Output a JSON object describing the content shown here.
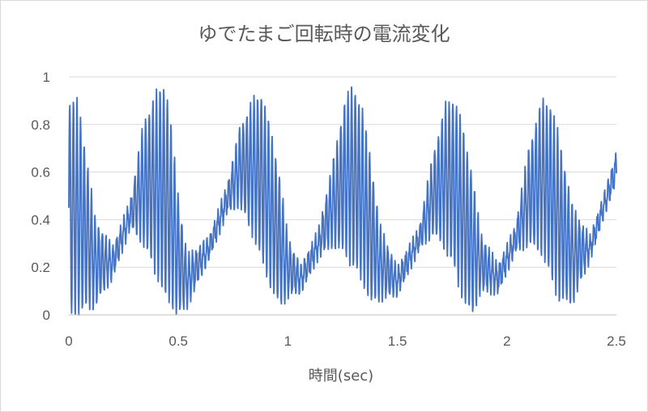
{
  "chart_data": {
    "type": "line",
    "title": "ゆでたまご回転時の電流変化",
    "xlabel": "時間(sec)",
    "ylabel": "",
    "xlim": [
      0,
      2.5
    ],
    "ylim": [
      0,
      1
    ],
    "xticks": [
      "0",
      "0.5",
      "1",
      "1.5",
      "2",
      "2.5"
    ],
    "yticks": [
      "0",
      "0.2",
      "0.4",
      "0.6",
      "0.8",
      "1"
    ],
    "grid": "horizontal",
    "legend": "none",
    "series": [
      {
        "color": "#4472c4",
        "envelope": {
          "x": [
            0.0,
            0.04,
            0.08,
            0.12,
            0.2,
            0.28,
            0.34,
            0.4,
            0.44,
            0.46,
            0.5,
            0.54,
            0.64,
            0.72,
            0.78,
            0.84,
            0.88,
            0.92,
            0.96,
            1.0,
            1.06,
            1.14,
            1.2,
            1.26,
            1.3,
            1.34,
            1.38,
            1.42,
            1.5,
            1.6,
            1.66,
            1.72,
            1.76,
            1.8,
            1.84,
            1.88,
            1.96,
            2.04,
            2.1,
            2.16,
            2.2,
            2.24,
            2.3,
            2.38,
            2.44,
            2.5
          ],
          "mid": [
            0.45,
            0.45,
            0.35,
            0.22,
            0.22,
            0.42,
            0.55,
            0.55,
            0.52,
            0.45,
            0.25,
            0.14,
            0.28,
            0.48,
            0.62,
            0.62,
            0.58,
            0.45,
            0.32,
            0.2,
            0.15,
            0.3,
            0.45,
            0.58,
            0.58,
            0.5,
            0.35,
            0.22,
            0.14,
            0.32,
            0.5,
            0.58,
            0.55,
            0.42,
            0.3,
            0.22,
            0.15,
            0.32,
            0.5,
            0.58,
            0.52,
            0.4,
            0.25,
            0.28,
            0.45,
            0.62
          ],
          "amp": [
            0.45,
            0.45,
            0.32,
            0.18,
            0.06,
            0.05,
            0.25,
            0.38,
            0.45,
            0.4,
            0.25,
            0.1,
            0.04,
            0.05,
            0.16,
            0.28,
            0.35,
            0.33,
            0.28,
            0.12,
            0.05,
            0.05,
            0.16,
            0.32,
            0.38,
            0.36,
            0.3,
            0.15,
            0.05,
            0.04,
            0.16,
            0.3,
            0.36,
            0.36,
            0.3,
            0.12,
            0.05,
            0.05,
            0.2,
            0.32,
            0.36,
            0.34,
            0.2,
            0.04,
            0.04,
            0.06
          ]
        },
        "oscillation_period": 0.0165
      }
    ]
  }
}
